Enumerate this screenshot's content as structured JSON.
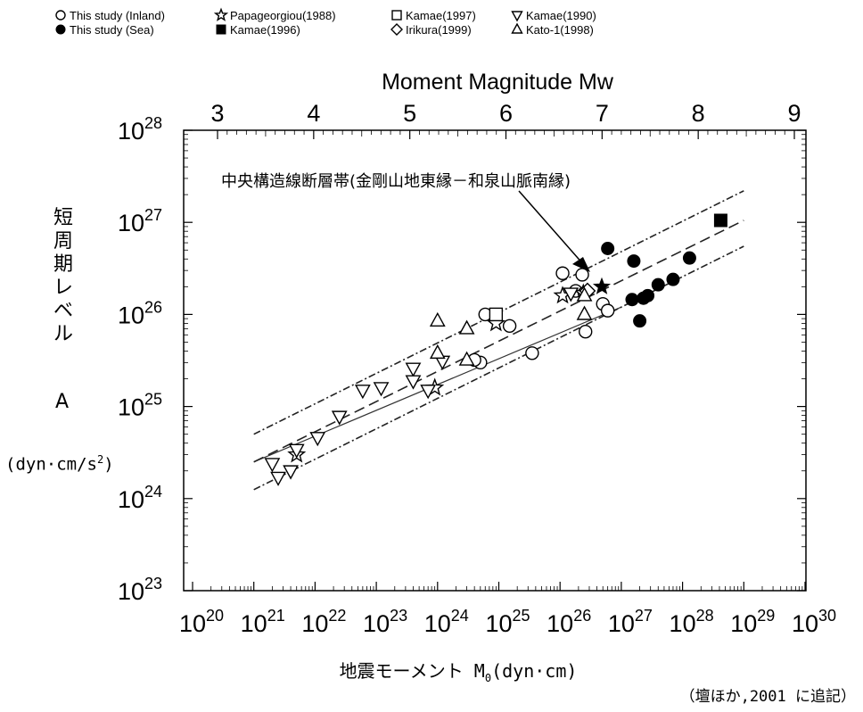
{
  "chart_data": {
    "type": "scatter",
    "x_scale": "log",
    "y_scale": "log",
    "xlim": [
      1e+20,
      1e+30
    ],
    "ylim": [
      1e+23,
      1e+28
    ],
    "xlabel_prefix": "地震モーメント M",
    "xlabel_sub": "0",
    "xlabel_suffix": "(dyn·cm)",
    "ylabel_chars": [
      "短",
      "周",
      "期",
      "レ",
      "ベ",
      "ル"
    ],
    "ylabel_symbol": "A",
    "yunit_prefix": "(dyn·cm/s",
    "yunit_sup": "2",
    "yunit_suffix": ")",
    "x2label": "Moment Magnitude Mw",
    "x_tick_bases": [
      "10",
      "10",
      "10",
      "10",
      "10",
      "10",
      "10",
      "10",
      "10",
      "10",
      "10"
    ],
    "x_tick_exps": [
      "20",
      "21",
      "22",
      "23",
      "24",
      "25",
      "26",
      "27",
      "28",
      "29",
      "30"
    ],
    "y_tick_bases": [
      "10",
      "10",
      "10",
      "10",
      "10",
      "10"
    ],
    "y_tick_exps": [
      "23",
      "24",
      "25",
      "26",
      "27",
      "28"
    ],
    "mw_ticks": [
      "3",
      "4",
      "5",
      "6",
      "7",
      "8",
      "9"
    ],
    "annotation": "中央構造線断層帯(金剛山地東縁－和泉山脈南縁)",
    "source": "（壇ほか,2001 に追記）",
    "lines": [
      {
        "style": "solid",
        "x": [
          1e+21,
          1e+27
        ],
        "y": [
          2.5e+24,
          1.2e+26
        ]
      },
      {
        "style": "dash-long",
        "x": [
          1e+21,
          1e+29
        ],
        "y": [
          2.5e+24,
          1.05e+27
        ]
      },
      {
        "style": "dash-dot",
        "x": [
          1e+21,
          1e+29
        ],
        "y": [
          5e+24,
          2.2e+27
        ]
      },
      {
        "style": "dash-dot",
        "x": [
          1e+21,
          1e+29
        ],
        "y": [
          1.25e+24,
          5.5e+26
        ]
      }
    ],
    "series": [
      {
        "name": "This study (Inland)",
        "marker": "open-circle",
        "points": [
          [
            5e+24,
            3e+25
          ],
          [
            4e+24,
            3.2e+25
          ],
          [
            6e+24,
            1e+26
          ],
          [
            1.5e+25,
            7.5e+25
          ],
          [
            3.5e+25,
            3.8e+25
          ],
          [
            1.1e+26,
            2.8e+26
          ],
          [
            1.8e+26,
            1.8e+26
          ],
          [
            2.3e+26,
            2.7e+26
          ],
          [
            2.5e+26,
            1.7e+26
          ],
          [
            2.6e+26,
            6.5e+25
          ],
          [
            5e+26,
            1.3e+26
          ],
          [
            6e+26,
            1.1e+26
          ]
        ]
      },
      {
        "name": "This study (Sea)",
        "marker": "filled-circle",
        "points": [
          [
            6e+26,
            5.2e+26
          ],
          [
            1.6e+27,
            3.8e+26
          ],
          [
            1.5e+27,
            1.45e+26
          ],
          [
            2e+27,
            8.5e+25
          ],
          [
            2.3e+27,
            1.5e+26
          ],
          [
            2.7e+27,
            1.6e+26
          ],
          [
            4e+27,
            2.1e+26
          ],
          [
            7e+27,
            2.4e+26
          ],
          [
            1.3e+28,
            4.1e+26
          ]
        ]
      },
      {
        "name": "Papageorgiou(1988)",
        "marker": "open-star",
        "points": [
          [
            5e+21,
            3e+24
          ],
          [
            9e+23,
            1.6e+25
          ],
          [
            9e+24,
            8e+25
          ],
          [
            1.1e+26,
            1.6e+26
          ],
          [
            2.4e+26,
            1.7e+26
          ]
        ]
      },
      {
        "name": "Kamae(1996)",
        "marker": "filled-square",
        "points": [
          [
            4.2e+28,
            1.05e+27
          ]
        ]
      },
      {
        "name": "Kamae(1997)",
        "marker": "open-square",
        "points": [
          [
            9e+24,
            1e+26
          ]
        ]
      },
      {
        "name": "Irikura(1999)",
        "marker": "open-diamond",
        "points": [
          [
            2.8e+26,
            1.8e+26
          ]
        ]
      },
      {
        "name": "Kamae(1990)",
        "marker": "open-triangle-down",
        "points": [
          [
            2e+21,
            2.4e+24
          ],
          [
            2.5e+21,
            1.7e+24
          ],
          [
            4e+21,
            2e+24
          ],
          [
            5e+21,
            3.4e+24
          ],
          [
            1.1e+22,
            4.6e+24
          ],
          [
            2.5e+22,
            7.8e+24
          ],
          [
            6e+22,
            1.5e+25
          ],
          [
            1.2e+23,
            1.6e+25
          ],
          [
            4e+23,
            2.6e+25
          ],
          [
            4e+23,
            1.9e+25
          ],
          [
            7e+23,
            1.5e+25
          ],
          [
            1.2e+24,
            3.1e+25
          ],
          [
            1.5e+26,
            1.7e+26
          ]
        ]
      },
      {
        "name": "Kato-1(1998)",
        "marker": "open-triangle-up",
        "points": [
          [
            1e+24,
            8.5e+25
          ],
          [
            1e+24,
            3.8e+25
          ],
          [
            3e+24,
            7e+25
          ],
          [
            3e+24,
            3.2e+25
          ],
          [
            2.5e+26,
            1e+26
          ],
          [
            2.5e+26,
            1.6e+26
          ]
        ]
      },
      {
        "name": "中央構造線断層帯",
        "marker": "filled-star",
        "points": [
          [
            4.8e+26,
            2e+26
          ]
        ]
      }
    ]
  }
}
